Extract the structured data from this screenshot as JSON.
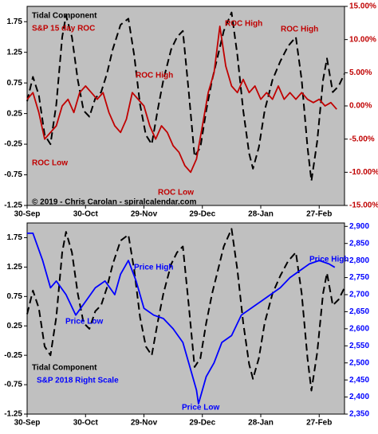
{
  "chart_data": [
    {
      "type": "line",
      "xlim": [
        0,
        163
      ],
      "xticks": [
        {
          "value": 0,
          "label": "30-Sep"
        },
        {
          "value": 30,
          "label": "30-Oct"
        },
        {
          "value": 60,
          "label": "29-Nov"
        },
        {
          "value": 90,
          "label": "29-Dec"
        },
        {
          "value": 120,
          "label": "28-Jan"
        },
        {
          "value": 150,
          "label": "27-Feb"
        }
      ],
      "ylim": [
        -1.25,
        2.0
      ],
      "yticks": [
        1.75,
        1.25,
        0.75,
        0.25,
        -0.25,
        -0.75,
        -1.25
      ],
      "y2lim": [
        -15,
        15
      ],
      "y2ticks": [
        {
          "value": 15,
          "label": "15.00%"
        },
        {
          "value": 10,
          "label": "10.00%"
        },
        {
          "value": 5,
          "label": "5.00%"
        },
        {
          "value": 0,
          "label": "0.00%"
        },
        {
          "value": -5,
          "label": "-5.00%"
        },
        {
          "value": -10,
          "label": "-10.00%"
        },
        {
          "value": -15,
          "label": "-15.00%"
        }
      ],
      "series": [
        {
          "name": "Tidal Component",
          "color": "#000000",
          "x": [
            0,
            3,
            6,
            9,
            12,
            15,
            18,
            20,
            23,
            26,
            29,
            32,
            35,
            38,
            41,
            44,
            48,
            52,
            55,
            58,
            61,
            64,
            67,
            70,
            74,
            77,
            80,
            83,
            86,
            89,
            92,
            95,
            98,
            101,
            105,
            108,
            111,
            114,
            116,
            119,
            122,
            126,
            130,
            134,
            138,
            141,
            144,
            146,
            149,
            152,
            154,
            157,
            160,
            163
          ],
          "values": [
            0.45,
            0.85,
            0.55,
            -0.1,
            -0.25,
            0.4,
            1.5,
            1.85,
            1.5,
            0.8,
            0.3,
            0.2,
            0.5,
            0.6,
            0.9,
            1.3,
            1.7,
            1.8,
            1.2,
            0.4,
            -0.1,
            -0.25,
            0.3,
            0.8,
            1.3,
            1.5,
            1.6,
            0.6,
            -0.45,
            -0.3,
            0.3,
            0.8,
            1.2,
            1.6,
            1.9,
            1.2,
            0.3,
            -0.4,
            -0.65,
            -0.3,
            0.3,
            0.8,
            1.1,
            1.35,
            1.5,
            0.8,
            -0.3,
            -0.85,
            -0.2,
            0.8,
            1.15,
            0.6,
            0.7,
            0.9
          ]
        },
        {
          "name": "S&P 15 day ROC",
          "color": "#c00000",
          "axis": "y2",
          "x": [
            0,
            3,
            6,
            9,
            12,
            15,
            18,
            21,
            24,
            27,
            30,
            33,
            36,
            39,
            42,
            45,
            48,
            51,
            54,
            57,
            60,
            63,
            66,
            69,
            72,
            75,
            78,
            81,
            84,
            87,
            90,
            93,
            96,
            99,
            102,
            105,
            108,
            111,
            114,
            117,
            120,
            123,
            126,
            129,
            132,
            135,
            138,
            141,
            144,
            147,
            150,
            153,
            156,
            159
          ],
          "values": [
            1,
            2,
            -1,
            -5,
            -4,
            -3,
            0,
            1,
            -1,
            2,
            3,
            2,
            1,
            2,
            -1,
            -3,
            -4,
            -2,
            2,
            1,
            0,
            -3,
            -5,
            -3,
            -4,
            -6,
            -7,
            -9,
            -10,
            -8,
            -3,
            2,
            5,
            12,
            6,
            3,
            2,
            4,
            2,
            3,
            1,
            2,
            1,
            3,
            1,
            2,
            1,
            2,
            1,
            0.5,
            1,
            0,
            0.5,
            -0.5
          ]
        }
      ],
      "annotations": [
        "Tidal Component",
        "S&P 15 day ROC",
        "ROC High",
        "ROC High",
        "ROC High",
        "ROC Low",
        "ROC Low",
        "© 2019 - Chris Carolan - spiralcalendar.com"
      ]
    },
    {
      "type": "line",
      "xlim": [
        0,
        163
      ],
      "xticks": [
        {
          "value": 0,
          "label": "30-Sep"
        },
        {
          "value": 30,
          "label": "30-Oct"
        },
        {
          "value": 60,
          "label": "29-Nov"
        },
        {
          "value": 90,
          "label": "29-Dec"
        },
        {
          "value": 120,
          "label": "28-Jan"
        },
        {
          "value": 150,
          "label": "27-Feb"
        }
      ],
      "ylim": [
        -1.25,
        2.0
      ],
      "yticks": [
        1.75,
        1.25,
        0.75,
        0.25,
        -0.25,
        -0.75,
        -1.25
      ],
      "y2lim": [
        2350,
        2910
      ],
      "y2ticks": [
        {
          "value": 2900,
          "label": "2,900"
        },
        {
          "value": 2850,
          "label": "2,850"
        },
        {
          "value": 2800,
          "label": "2,800"
        },
        {
          "value": 2750,
          "label": "2,750"
        },
        {
          "value": 2700,
          "label": "2,700"
        },
        {
          "value": 2650,
          "label": "2,650"
        },
        {
          "value": 2600,
          "label": "2,600"
        },
        {
          "value": 2550,
          "label": "2,550"
        },
        {
          "value": 2500,
          "label": "2,500"
        },
        {
          "value": 2450,
          "label": "2,450"
        },
        {
          "value": 2400,
          "label": "2,400"
        },
        {
          "value": 2350,
          "label": "2,350"
        }
      ],
      "series": [
        {
          "name": "Tidal Component",
          "color": "#000000",
          "x": [
            0,
            3,
            6,
            9,
            12,
            15,
            18,
            20,
            23,
            26,
            29,
            32,
            35,
            38,
            41,
            44,
            48,
            52,
            55,
            58,
            61,
            64,
            67,
            70,
            74,
            77,
            80,
            83,
            86,
            89,
            92,
            95,
            98,
            101,
            105,
            108,
            111,
            114,
            116,
            119,
            122,
            126,
            130,
            134,
            138,
            141,
            144,
            146,
            149,
            152,
            154,
            157,
            160,
            163
          ],
          "values": [
            0.45,
            0.85,
            0.55,
            -0.1,
            -0.25,
            0.4,
            1.5,
            1.85,
            1.5,
            0.8,
            0.3,
            0.2,
            0.5,
            0.6,
            0.9,
            1.3,
            1.7,
            1.8,
            1.2,
            0.4,
            -0.1,
            -0.25,
            0.3,
            0.8,
            1.3,
            1.5,
            1.6,
            0.6,
            -0.45,
            -0.3,
            0.3,
            0.8,
            1.2,
            1.6,
            1.9,
            1.2,
            0.3,
            -0.4,
            -0.65,
            -0.3,
            0.3,
            0.8,
            1.1,
            1.35,
            1.5,
            0.8,
            -0.3,
            -0.85,
            -0.2,
            0.8,
            1.15,
            0.6,
            0.7,
            0.9
          ]
        },
        {
          "name": "S&P 2018 Right Scale",
          "color": "#0000ff",
          "axis": "y2",
          "x": [
            0,
            3,
            8,
            12,
            15,
            20,
            25,
            30,
            35,
            40,
            45,
            48,
            52,
            56,
            60,
            65,
            70,
            75,
            80,
            84,
            87,
            88,
            92,
            96,
            100,
            105,
            110,
            115,
            120,
            125,
            130,
            135,
            140,
            145,
            150,
            155,
            158
          ],
          "values": [
            2880,
            2880,
            2800,
            2720,
            2740,
            2700,
            2640,
            2680,
            2720,
            2740,
            2700,
            2760,
            2800,
            2740,
            2660,
            2640,
            2630,
            2600,
            2560,
            2480,
            2420,
            2380,
            2460,
            2500,
            2560,
            2580,
            2640,
            2660,
            2680,
            2700,
            2720,
            2750,
            2770,
            2790,
            2800,
            2790,
            2780
          ]
        }
      ],
      "annotations": [
        "Price High",
        "Price High",
        "Price Low",
        "Price Low",
        "Tidal Component",
        "S&P 2018 Right Scale"
      ]
    }
  ]
}
